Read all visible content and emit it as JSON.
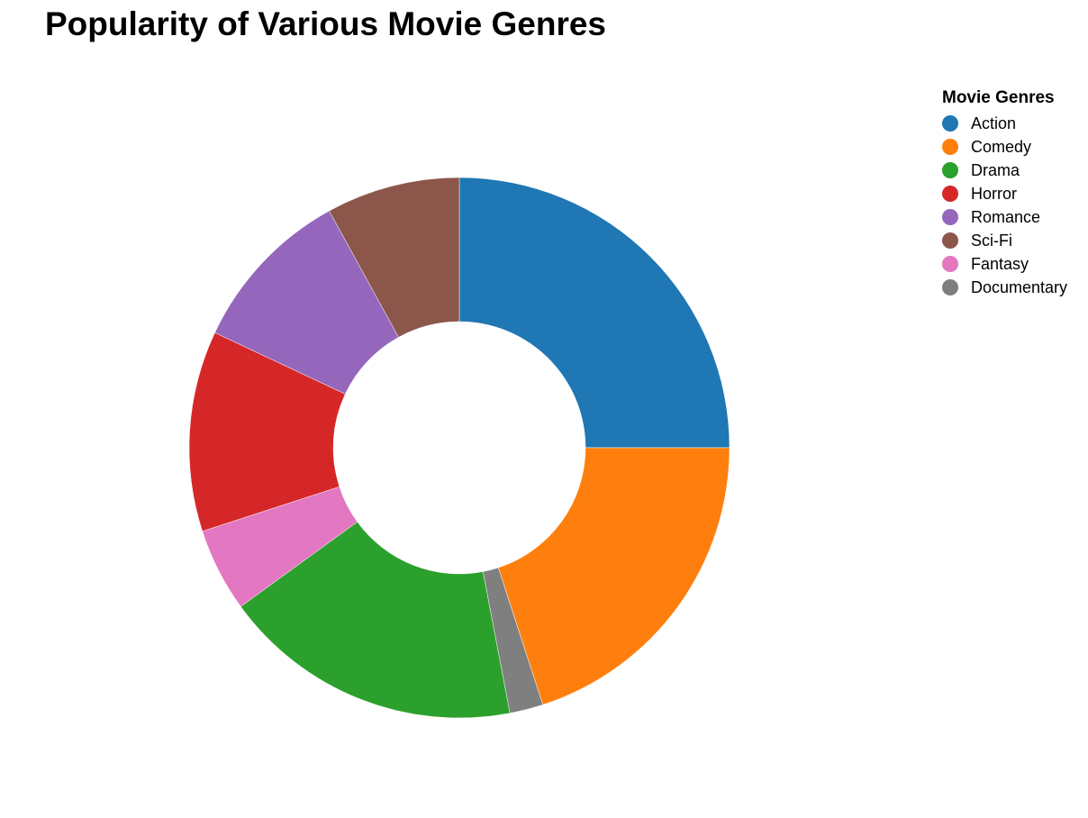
{
  "chart_data": {
    "type": "pie",
    "variant": "donut",
    "title": "Popularity of Various Movie Genres",
    "legend": {
      "title": "Movie Genres",
      "placement": "top-right"
    },
    "slices": [
      {
        "label": "Action",
        "value": 25,
        "color": "#1f77b4"
      },
      {
        "label": "Comedy",
        "value": 20,
        "color": "#ff7f0e"
      },
      {
        "label": "Documentary",
        "value": 2,
        "color": "#7f7f7f"
      },
      {
        "label": "Drama",
        "value": 18,
        "color": "#2ca02c"
      },
      {
        "label": "Fantasy",
        "value": 5,
        "color": "#e377c2"
      },
      {
        "label": "Horror",
        "value": 12,
        "color": "#d62728"
      },
      {
        "label": "Romance",
        "value": 10,
        "color": "#9467bd"
      },
      {
        "label": "Sci-Fi",
        "value": 8,
        "color": "#8c564b"
      }
    ],
    "legend_order": [
      "Action",
      "Comedy",
      "Drama",
      "Horror",
      "Romance",
      "Sci-Fi",
      "Fantasy",
      "Documentary"
    ]
  }
}
